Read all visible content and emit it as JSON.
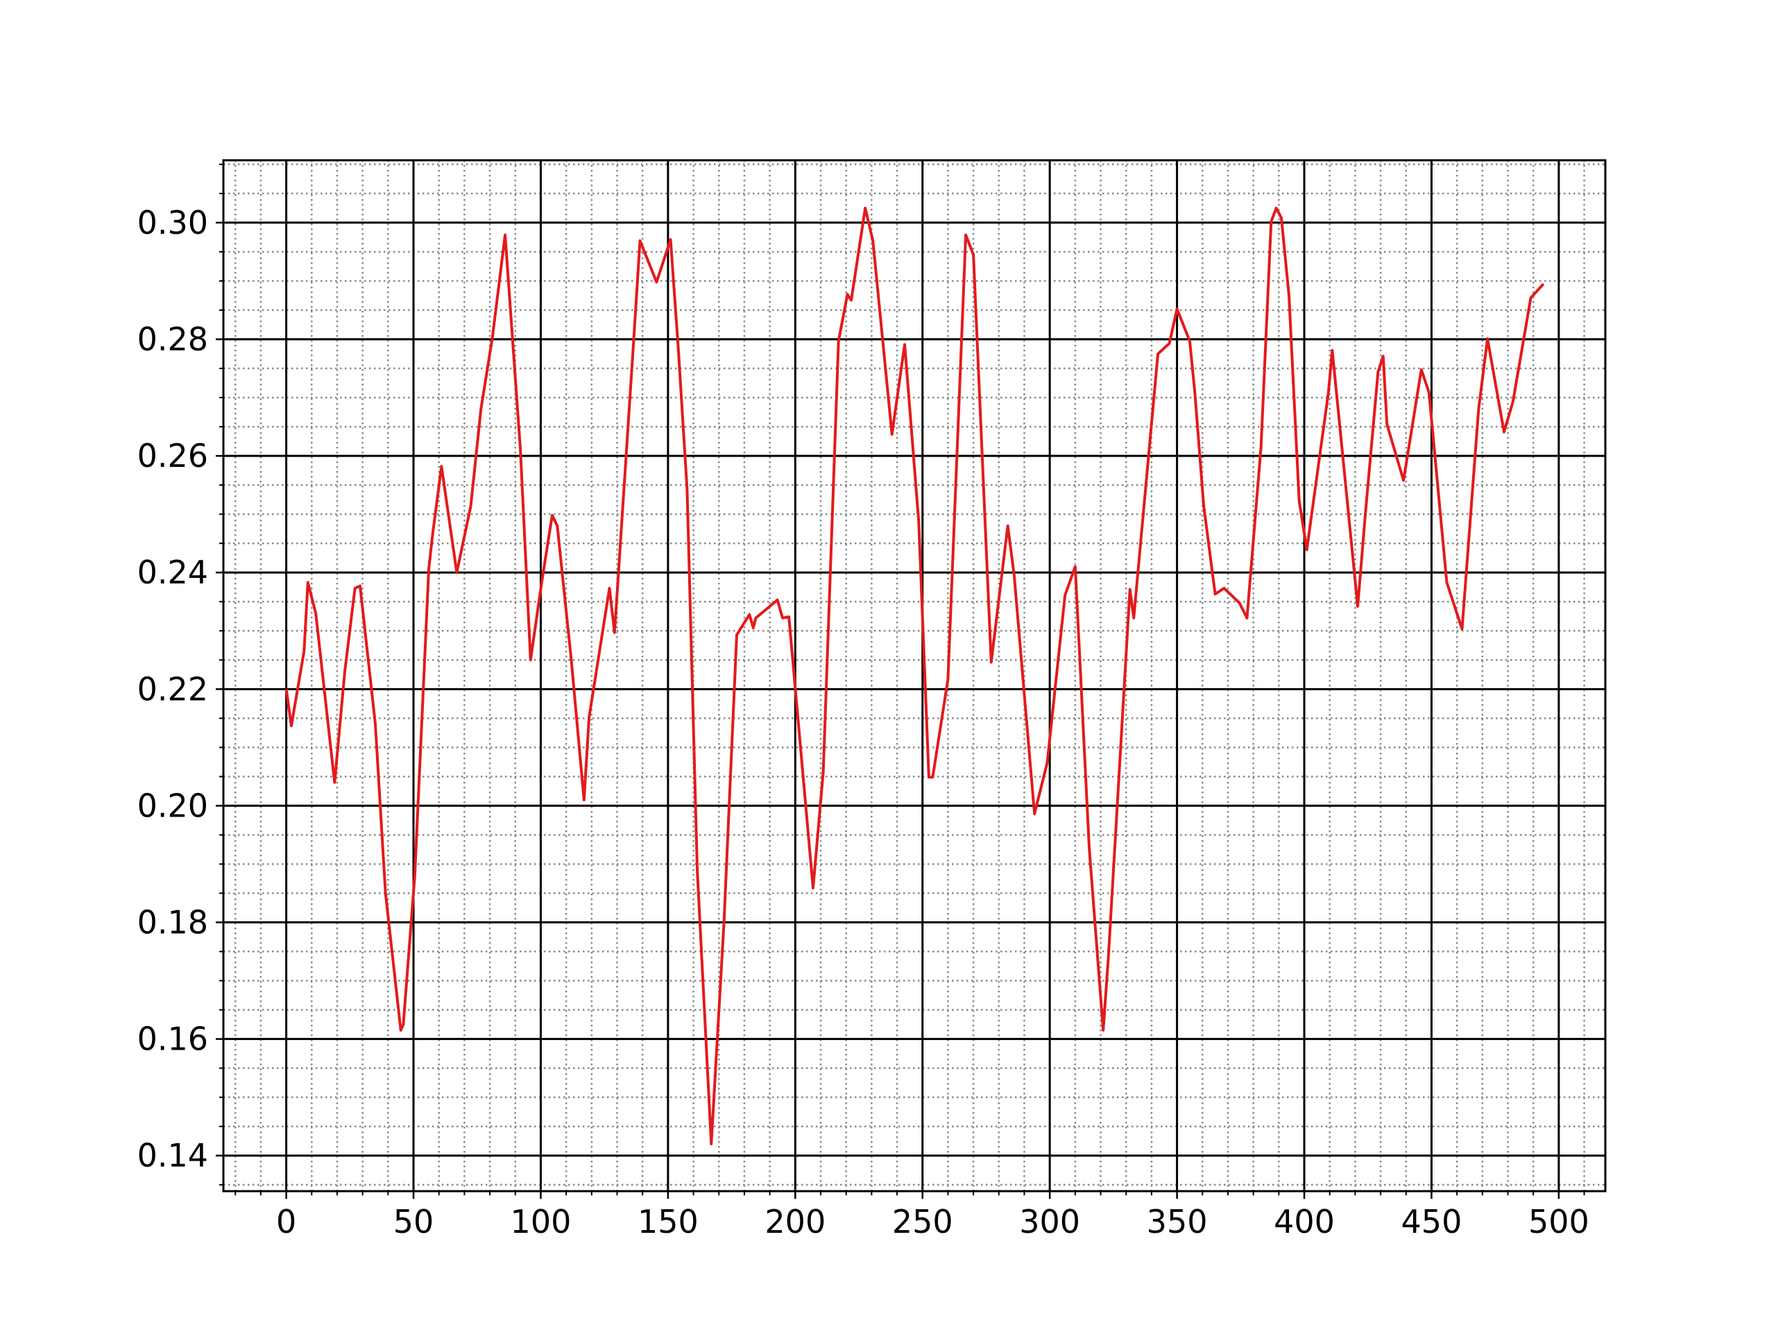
{
  "chart_data": {
    "type": "line",
    "x": [
      0,
      2,
      7,
      8.5,
      11.6,
      19,
      23,
      27,
      29,
      35,
      39,
      45,
      46,
      50.5,
      56,
      57.5,
      61,
      67,
      72.5,
      76.5,
      81,
      86,
      92,
      96,
      100.5,
      104.5,
      106.5,
      112,
      117,
      119,
      127,
      129,
      136.5,
      139,
      145.5,
      151,
      154,
      157.5,
      161.5,
      167,
      172,
      177,
      182,
      183.5,
      184.5,
      193,
      195,
      197.5,
      207,
      211,
      217,
      220.5,
      222,
      227.5,
      230.5,
      238,
      243,
      248.5,
      252.5,
      254,
      260,
      267,
      270,
      277,
      283.5,
      286,
      294,
      299,
      306,
      310,
      315.5,
      321,
      323,
      331.5,
      333,
      342.5,
      347,
      350,
      355,
      357,
      360.5,
      365,
      368.5,
      374.5,
      377.5,
      383,
      387,
      389,
      391,
      394,
      398,
      401,
      409.5,
      411,
      421,
      424,
      429,
      431,
      432.5,
      439,
      446,
      449,
      456,
      462,
      468.5,
      472,
      478.5,
      482,
      489,
      494
    ],
    "series": [
      {
        "color": "#e31a1c",
        "values": [
          0.22,
          0.2137,
          0.2265,
          0.2383,
          0.233,
          0.204,
          0.223,
          0.2373,
          0.2377,
          0.214,
          0.185,
          0.1615,
          0.1625,
          0.188,
          0.2406,
          0.2465,
          0.2582,
          0.24,
          0.2514,
          0.268,
          0.2803,
          0.2979,
          0.2611,
          0.225,
          0.2387,
          0.2498,
          0.248,
          0.225,
          0.201,
          0.2152,
          0.2373,
          0.2297,
          0.2797,
          0.2969,
          0.2898,
          0.2971,
          0.2787,
          0.2543,
          0.1889,
          0.142,
          0.18,
          0.2293,
          0.2328,
          0.2305,
          0.2322,
          0.2353,
          0.2322,
          0.2324,
          0.1859,
          0.2058,
          0.2797,
          0.2877,
          0.2867,
          0.3025,
          0.2969,
          0.2637,
          0.2791,
          0.2488,
          0.2049,
          0.2049,
          0.2217,
          0.2979,
          0.2945,
          0.2246,
          0.248,
          0.2396,
          0.1986,
          0.2074,
          0.2361,
          0.241,
          0.1928,
          0.1615,
          0.1738,
          0.2371,
          0.2322,
          0.2775,
          0.2793,
          0.2852,
          0.2797,
          0.2709,
          0.2514,
          0.2363,
          0.2373,
          0.2348,
          0.2322,
          0.2615,
          0.3002,
          0.3025,
          0.3008,
          0.2875,
          0.2523,
          0.2439,
          0.2709,
          0.2781,
          0.2342,
          0.25,
          0.2744,
          0.2771,
          0.2654,
          0.2558,
          0.2748,
          0.2709,
          0.2383,
          0.2303,
          0.268,
          0.2801,
          0.2641,
          0.2693,
          0.2871,
          0.2895
        ]
      }
    ],
    "xlim": [
      -24.7,
      518.3
    ],
    "ylim": [
      0.1339,
      0.3107
    ],
    "xticks": [
      0,
      50,
      100,
      150,
      200,
      250,
      300,
      350,
      400,
      450,
      500
    ],
    "yticks": [
      0.14,
      0.16,
      0.18,
      {
        "value": 0.2,
        "label": "0.20"
      },
      0.22,
      0.24,
      0.26,
      0.28,
      {
        "value": 0.3,
        "label": "0.30"
      }
    ],
    "xminorticks": [
      -20,
      -10,
      0,
      10,
      20,
      30,
      40,
      50,
      60,
      70,
      80,
      90,
      100,
      110,
      120,
      130,
      140,
      150,
      160,
      170,
      180,
      190,
      200,
      210,
      220,
      230,
      240,
      250,
      260,
      270,
      280,
      290,
      300,
      310,
      320,
      330,
      340,
      350,
      360,
      370,
      380,
      390,
      400,
      410,
      420,
      430,
      440,
      450,
      460,
      470,
      480,
      490,
      500,
      510
    ],
    "yminorticks": [
      0.135,
      0.14,
      0.145,
      0.15,
      0.155,
      0.16,
      0.165,
      0.17,
      0.175,
      0.18,
      0.185,
      0.19,
      0.195,
      0.2,
      0.205,
      0.21,
      0.215,
      0.22,
      0.225,
      0.23,
      0.235,
      0.24,
      0.245,
      0.25,
      0.255,
      0.26,
      0.265,
      0.27,
      0.275,
      0.28,
      0.285,
      0.29,
      0.295,
      0.3,
      0.305,
      0.31
    ],
    "grid": true
  }
}
